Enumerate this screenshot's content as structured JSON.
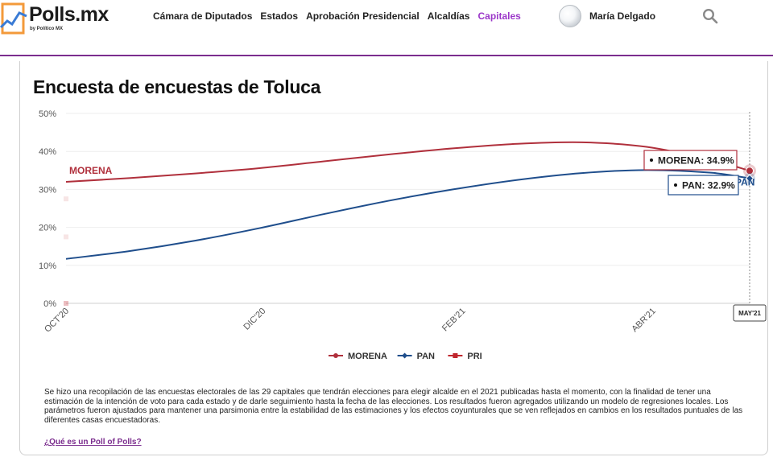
{
  "brand": {
    "name": "Polls.mx",
    "sub": "by Político MX",
    "accent": "#7b2d8e"
  },
  "nav": {
    "items": [
      {
        "label": "Cámara de Diputados"
      },
      {
        "label": "Estados"
      },
      {
        "label": "Aprobación Presidencial"
      },
      {
        "label": "Alcaldías"
      },
      {
        "label": "Capitales",
        "active": true
      }
    ]
  },
  "user": {
    "name": "María Delgado",
    "avatar_icon": "user-avatar"
  },
  "search": {
    "icon": "search-icon"
  },
  "page": {
    "title": "Encuesta de encuestas de Toluca",
    "description": "Se hizo una recopilación de las encuestas electorales de las 29 capitales que tendrán elecciones para elegir alcalde en el 2021 publicadas hasta el momento, con la finalidad de tener una estimación de la intención de voto para cada estado y de darle seguimiento hasta la fecha de las elecciones. Los resultados fueron agregados utilizando un modelo de regresiones locales. Los parámetros fueron ajustados para mantener una parsimonia entre la estabilidad de las estimaciones y los efectos coyunturales que se ven reflejados en cambios en los resultados puntuales de las diferentes casas encuestadoras.",
    "link": "¿Qué es un Poll of Polls?"
  },
  "chart_data": {
    "type": "line",
    "title": "Encuesta de encuestas de Toluca",
    "xlabel": "",
    "ylabel": "",
    "x_ticks": [
      {
        "label": "OCT'20",
        "x": 0
      },
      {
        "label": "DIC'20",
        "x": 61
      },
      {
        "label": "FEB'21",
        "x": 123
      },
      {
        "label": "ABR'21",
        "x": 182
      },
      {
        "label": "MAY'21",
        "x": 212
      }
    ],
    "x_range": [
      0,
      212
    ],
    "ylim": [
      0,
      50
    ],
    "y_ticks": [
      0,
      10,
      20,
      30,
      40,
      50
    ],
    "y_tick_labels": [
      "0%",
      "10%",
      "20%",
      "30%",
      "40%",
      "50%"
    ],
    "grid": "horizontal",
    "legend_position": "bottom",
    "series": [
      {
        "name": "MORENA",
        "color": "#b0303c",
        "inline_label": "MORENA",
        "x": [
          0,
          20,
          40,
          60,
          80,
          100,
          120,
          140,
          160,
          180,
          200,
          212
        ],
        "values": [
          32.0,
          33.0,
          34.2,
          35.6,
          37.4,
          39.2,
          40.8,
          42.0,
          42.4,
          41.2,
          37.8,
          34.9
        ],
        "end_label": "MORENA: 34.9%",
        "end_value": 34.9
      },
      {
        "name": "PAN",
        "color": "#1f4e8c",
        "inline_label": "PAN",
        "x": [
          0,
          20,
          40,
          60,
          80,
          100,
          120,
          140,
          160,
          180,
          200,
          212
        ],
        "values": [
          11.7,
          13.8,
          16.5,
          19.8,
          23.5,
          27.0,
          30.0,
          32.5,
          34.3,
          35.1,
          34.4,
          32.9
        ],
        "end_label": "PAN: 32.9%",
        "end_value": 32.9
      },
      {
        "name": "PRI",
        "color": "#c0262d",
        "x": [
          0
        ],
        "values": [
          0
        ],
        "faint_points": [
          {
            "x": 0,
            "y": 27.5
          },
          {
            "x": 0,
            "y": 17.5
          },
          {
            "x": 0,
            "y": 0
          }
        ]
      }
    ]
  }
}
